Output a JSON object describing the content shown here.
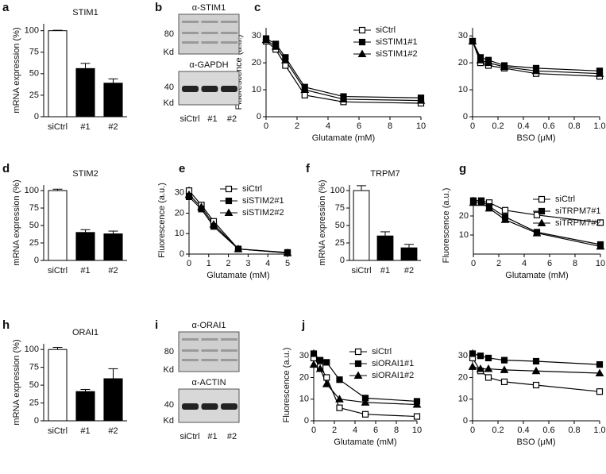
{
  "chart_data": [
    {
      "panel": "a",
      "type": "bar",
      "title": "STIM1",
      "ylabel": "mRNA expression (%)",
      "categories": [
        "siCtrl",
        "#1",
        "#2"
      ],
      "values": [
        100,
        56,
        39
      ],
      "errors": [
        0.5,
        6,
        5
      ],
      "colors": [
        "#ffffff",
        "#000000",
        "#000000"
      ],
      "ylim": [
        0,
        108
      ],
      "yticks": [
        0,
        25,
        50,
        75,
        100
      ]
    },
    {
      "panel": "c",
      "type": "line",
      "xlabel": "Glutamate (mM)",
      "ylabel": "Fluorescence (a.u.)",
      "x": [
        0,
        0.625,
        1.25,
        2.5,
        5,
        10
      ],
      "xlim": [
        0,
        10
      ],
      "xticks": [
        0,
        2,
        4,
        6,
        8,
        10
      ],
      "ylim": [
        0,
        33
      ],
      "yticks": [
        0,
        10,
        20,
        30
      ],
      "legend": "upper right",
      "series": [
        {
          "name": "siCtrl",
          "marker": "square-open",
          "color": "#000000",
          "values": [
            28,
            25,
            19,
            8,
            5.5,
            5
          ]
        },
        {
          "name": "siSTIM1#1",
          "marker": "square",
          "color": "#000000",
          "values": [
            29,
            27,
            22,
            11,
            7.5,
            7
          ]
        },
        {
          "name": "siSTIM1#2",
          "marker": "triangle",
          "color": "#000000",
          "values": [
            28.5,
            26,
            21,
            10,
            6.5,
            6
          ]
        }
      ]
    },
    {
      "type": "line",
      "xlabel": "BSO (μM)",
      "x": [
        0,
        0.0625,
        0.125,
        0.25,
        0.5,
        1
      ],
      "xlim": [
        0,
        1
      ],
      "xticks": [
        0,
        0.2,
        0.4,
        0.6,
        0.8,
        {
          "value": 1,
          "label": "1.0"
        }
      ],
      "ylim": [
        0,
        33
      ],
      "yticks": [
        0,
        10,
        20,
        30
      ],
      "series": [
        {
          "marker": "square-open",
          "color": "#000000",
          "values": [
            28,
            20,
            19,
            18,
            16,
            15
          ]
        },
        {
          "marker": "square",
          "color": "#000000",
          "values": [
            28,
            22,
            21,
            19,
            18,
            17
          ]
        },
        {
          "marker": "triangle",
          "color": "#000000",
          "values": [
            28,
            21,
            20,
            18.5,
            17,
            16
          ]
        }
      ]
    },
    {
      "panel": "d",
      "type": "bar",
      "title": "STIM2",
      "ylabel": "mRNA expression (%)",
      "categories": [
        "siCtrl",
        "#1",
        "#2"
      ],
      "values": [
        100,
        40,
        38
      ],
      "errors": [
        2,
        4,
        4
      ],
      "colors": [
        "#ffffff",
        "#000000",
        "#000000"
      ],
      "ylim": [
        0,
        108
      ],
      "yticks": [
        0,
        25,
        50,
        75,
        100
      ]
    },
    {
      "panel": "e",
      "type": "line",
      "xlabel": "Glutamate (mM)",
      "ylabel": "Fluorescence (a.u.)",
      "x": [
        0,
        0.625,
        1.25,
        2.5,
        5
      ],
      "xlim": [
        0,
        5
      ],
      "xticks": [
        0,
        1,
        2,
        3,
        4,
        5
      ],
      "ylim": [
        0,
        33
      ],
      "yticks": [
        0,
        10,
        20,
        30
      ],
      "legend": "upper right",
      "series": [
        {
          "name": "siCtrl",
          "marker": "square-open",
          "color": "#000000",
          "values": [
            31,
            24,
            16,
            2.5,
            0.8
          ]
        },
        {
          "name": "siSTIM2#1",
          "marker": "square",
          "color": "#000000",
          "values": [
            28,
            22,
            13.5,
            2.5,
            0.5
          ]
        },
        {
          "name": "siSTIM2#2",
          "marker": "triangle",
          "color": "#000000",
          "values": [
            29,
            23,
            14.5,
            2.5,
            0.6
          ]
        }
      ]
    },
    {
      "panel": "f",
      "type": "bar",
      "title": "TRPM7",
      "ylabel": "mRNA expression (%)",
      "categories": [
        "siCtrl",
        "#1",
        "#2"
      ],
      "values": [
        100,
        35,
        18
      ],
      "errors": [
        7,
        6,
        5
      ],
      "colors": [
        "#ffffff",
        "#000000",
        "#000000"
      ],
      "ylim": [
        0,
        108
      ],
      "yticks": [
        0,
        25,
        50,
        75,
        100
      ]
    },
    {
      "panel": "g",
      "type": "line",
      "xlabel": "Glutamate (mM)",
      "ylabel": "Fluorescence (a.u.)",
      "x": [
        0,
        0.625,
        1.25,
        2.5,
        5,
        10
      ],
      "xlim": [
        0,
        10
      ],
      "xticks": [
        0,
        2,
        4,
        6,
        8,
        10
      ],
      "ylim": [
        0,
        30
      ],
      "yticks": [
        10,
        20
      ],
      "legend": "upper right",
      "series": [
        {
          "name": "siCtrl",
          "marker": "square-open",
          "color": "#000000",
          "values": [
            28,
            28,
            27,
            23,
            20.5,
            16.5
          ]
        },
        {
          "name": "siTRPM7#1",
          "marker": "square",
          "color": "#000000",
          "values": [
            28,
            28,
            25,
            19.5,
            11.5,
            5
          ]
        },
        {
          "name": "siTRPM7#2",
          "marker": "triangle",
          "color": "#000000",
          "values": [
            27,
            27,
            24,
            18,
            11,
            4
          ]
        }
      ]
    },
    {
      "panel": "h",
      "type": "bar",
      "title": "ORAI1",
      "ylabel": "mRNA expression (%)",
      "categories": [
        "siCtrl",
        "#1",
        "#2"
      ],
      "values": [
        100,
        41,
        59
      ],
      "errors": [
        3,
        3,
        14
      ],
      "colors": [
        "#ffffff",
        "#000000",
        "#000000"
      ],
      "ylim": [
        0,
        108
      ],
      "yticks": [
        0,
        25,
        50,
        75,
        100
      ]
    },
    {
      "panel": "j",
      "type": "line",
      "xlabel": "Glutamate (mM)",
      "ylabel": "Fluorescence (a.u.)",
      "x": [
        0,
        0.625,
        1.25,
        2.5,
        5,
        10
      ],
      "xlim": [
        0,
        10
      ],
      "xticks": [
        0,
        2,
        4,
        6,
        8,
        10
      ],
      "ylim": [
        0,
        33
      ],
      "yticks": [
        0,
        10,
        20,
        30
      ],
      "legend": "upper right",
      "series": [
        {
          "name": "siCtrl",
          "marker": "square-open",
          "color": "#000000",
          "values": [
            29,
            25,
            20,
            6,
            3,
            2
          ]
        },
        {
          "name": "siORAI1#1",
          "marker": "square",
          "color": "#000000",
          "values": [
            31,
            28,
            27,
            19,
            10.5,
            9
          ]
        },
        {
          "name": "siORAI1#2",
          "marker": "triangle",
          "color": "#000000",
          "values": [
            26,
            24,
            17,
            10,
            8.5,
            7.5
          ]
        }
      ]
    },
    {
      "type": "line",
      "xlabel": "BSO (μM)",
      "x": [
        0,
        0.0625,
        0.125,
        0.25,
        0.5,
        1
      ],
      "xlim": [
        0,
        1
      ],
      "xticks": [
        0,
        0.2,
        0.4,
        0.6,
        0.8,
        {
          "value": 1,
          "label": "1.0"
        }
      ],
      "ylim": [
        0,
        33
      ],
      "yticks": [
        0,
        10,
        20,
        30
      ],
      "series": [
        {
          "marker": "square-open",
          "color": "#000000",
          "values": [
            29,
            23,
            20,
            18,
            16.5,
            13.5
          ]
        },
        {
          "marker": "square",
          "color": "#000000",
          "values": [
            31,
            30,
            29,
            28,
            27.5,
            26
          ]
        },
        {
          "marker": "triangle",
          "color": "#000000",
          "values": [
            25,
            24,
            24,
            23.5,
            23,
            22
          ]
        }
      ]
    }
  ],
  "blots": [
    {
      "panel": "b",
      "sections": [
        {
          "title": "α-STIM1",
          "marker": "80",
          "unit": "Kd"
        },
        {
          "title": "α-GAPDH",
          "marker": "40",
          "unit": "Kd"
        }
      ],
      "lanes": [
        "siCtrl",
        "#1",
        "#2"
      ]
    },
    {
      "panel": "i",
      "sections": [
        {
          "title": "α-ORAI1",
          "marker": "80",
          "unit": "Kd"
        },
        {
          "title": "α-ACTIN",
          "marker": "40",
          "unit": "Kd"
        }
      ],
      "lanes": [
        "siCtrl",
        "#1",
        "#2"
      ]
    }
  ]
}
